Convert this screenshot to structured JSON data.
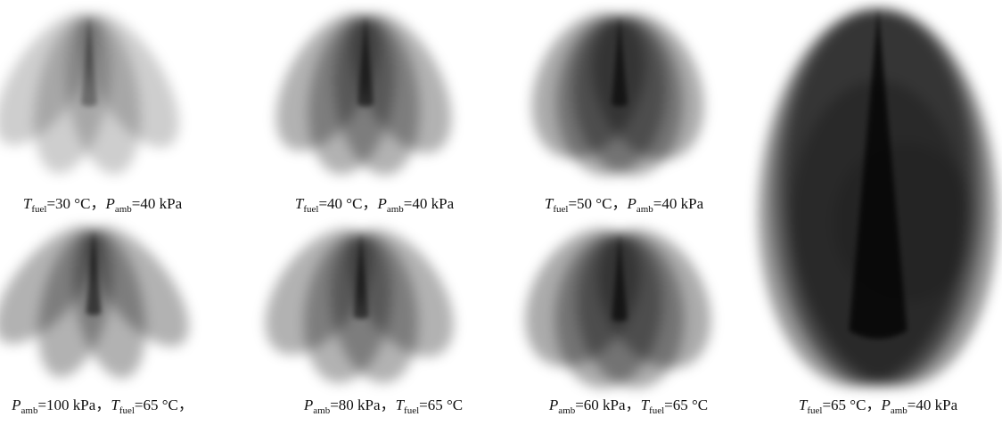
{
  "panels": [
    {
      "caption": [
        {
          "symbol": "T",
          "sub": "fuel",
          "rest": "=30 °C，"
        },
        {
          "symbol": "P",
          "sub": "amb",
          "rest": "=40 kPa"
        }
      ]
    },
    {
      "caption": [
        {
          "symbol": "T",
          "sub": "fuel",
          "rest": "=40 °C，"
        },
        {
          "symbol": "P",
          "sub": "amb",
          "rest": "=40 kPa"
        }
      ]
    },
    {
      "caption": [
        {
          "symbol": "T",
          "sub": "fuel",
          "rest": "=50 °C，"
        },
        {
          "symbol": "P",
          "sub": "amb",
          "rest": "=40 kPa"
        }
      ]
    },
    {
      "caption": [
        {
          "symbol": "P",
          "sub": "amb",
          "rest": "=100 kPa，"
        },
        {
          "symbol": "T",
          "sub": "fuel",
          "rest": "=65 °C，"
        }
      ]
    },
    {
      "caption": [
        {
          "symbol": "P",
          "sub": "amb",
          "rest": "=80 kPa，"
        },
        {
          "symbol": "T",
          "sub": "fuel",
          "rest": "=65 °C"
        }
      ]
    },
    {
      "caption": [
        {
          "symbol": "P",
          "sub": "amb",
          "rest": "=60 kPa，"
        },
        {
          "symbol": "T",
          "sub": "fuel",
          "rest": "=65 °C"
        }
      ]
    },
    {
      "caption": [
        {
          "symbol": "T",
          "sub": "fuel",
          "rest": "=65 °C，"
        },
        {
          "symbol": "P",
          "sub": "amb",
          "rest": "=40 kPa"
        }
      ]
    }
  ]
}
